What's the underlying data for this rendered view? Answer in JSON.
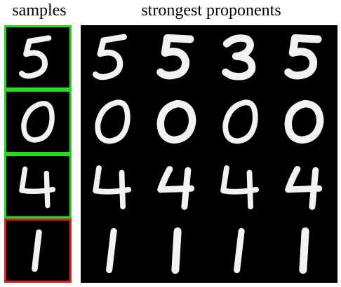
{
  "headers": {
    "samples": "samples",
    "proponents": "strongest proponents"
  },
  "colors": {
    "positive_border": "#22dd22",
    "negative_border": "#dd2222",
    "tile_background": "#000000",
    "digit_stroke": "#f2f2f2"
  },
  "rows": [
    {
      "sample": {
        "digit": "5",
        "border": "positive"
      },
      "proponents": [
        "5",
        "5",
        "3",
        "5"
      ]
    },
    {
      "sample": {
        "digit": "0",
        "border": "positive"
      },
      "proponents": [
        "0",
        "0",
        "0",
        "0"
      ]
    },
    {
      "sample": {
        "digit": "4",
        "border": "positive"
      },
      "proponents": [
        "4",
        "4",
        "4",
        "4"
      ]
    },
    {
      "sample": {
        "digit": "1",
        "border": "negative"
      },
      "proponents": [
        "1",
        "1",
        "1",
        "1"
      ]
    }
  ]
}
